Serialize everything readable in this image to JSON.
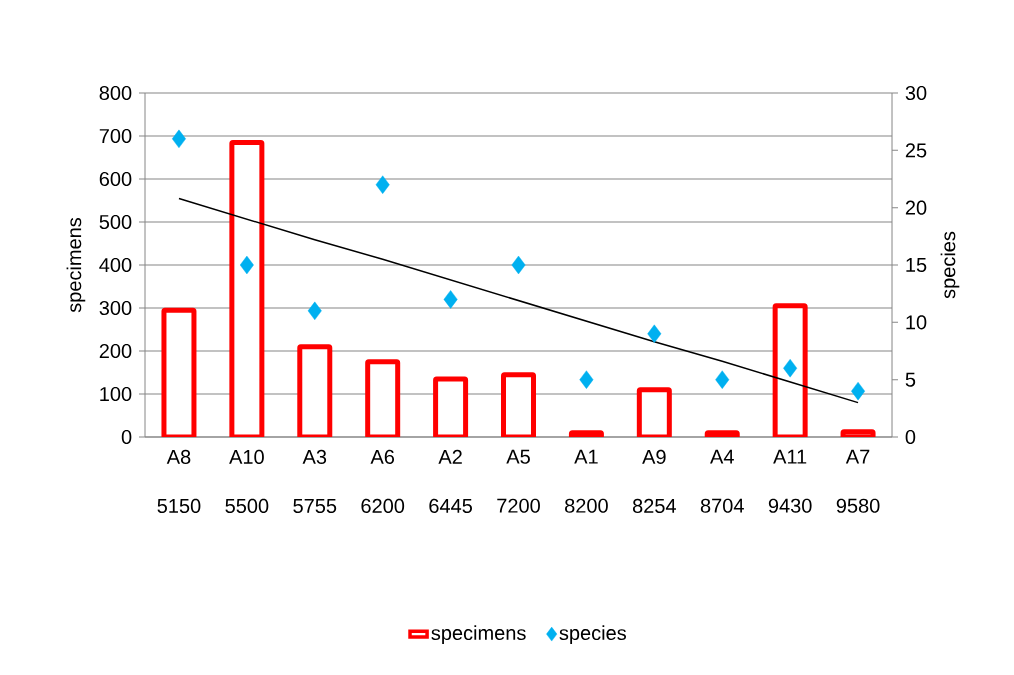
{
  "chart_data": {
    "type": "bar",
    "xlabel": null,
    "ylabel": "specimens",
    "y2label": "species",
    "categories": [
      "A8 5150",
      "A10 5500",
      "A3 5755",
      "A6 6200",
      "A2 6445",
      "A5 7200",
      "A1 8200",
      "A9 8254",
      "A4 8704",
      "A11 9430",
      "A7 9580"
    ],
    "series": [
      {
        "name": "specimens",
        "color": "#ff0000",
        "values": [
          295,
          685,
          210,
          175,
          135,
          145,
          10,
          110,
          10,
          305,
          12
        ]
      },
      {
        "name": "species",
        "type": "scatter",
        "axis": "y2",
        "color": "#00b0f0",
        "marker": "diamond",
        "values": [
          26,
          15,
          11,
          22,
          12,
          15,
          5,
          9,
          5,
          6,
          4
        ]
      },
      {
        "type": "line",
        "axis": "y2",
        "color": "#000000",
        "line_style": "solid",
        "values": [
          20.8,
          19.0,
          17.2,
          15.5,
          13.7,
          11.9,
          10.1,
          8.3,
          6.6,
          4.8,
          3.0
        ]
      }
    ],
    "ylim": [
      0,
      800
    ],
    "yticks": [
      0,
      100,
      200,
      300,
      400,
      500,
      600,
      700,
      800
    ],
    "y2lim": [
      0,
      30
    ],
    "y2ticks": [
      0,
      5,
      10,
      15,
      20,
      25,
      30
    ],
    "grid": "y",
    "legend": "bottom"
  }
}
